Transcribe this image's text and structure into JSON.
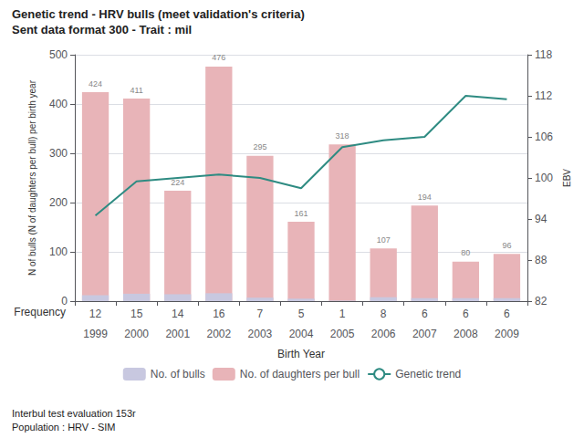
{
  "chart_data": {
    "type": "bar",
    "title": "Genetic trend - HRV bulls (meet validation's criteria)",
    "subtitle": "Sent data format 300 - Trait : mil",
    "categories": [
      1999,
      2000,
      2001,
      2002,
      2003,
      2004,
      2005,
      2006,
      2007,
      2008,
      2009
    ],
    "series": [
      {
        "name": "No. of bulls",
        "type": "bar",
        "color": "#c8c8e0",
        "values": [
          12,
          15,
          14,
          16,
          7,
          5,
          1,
          8,
          6,
          6,
          6
        ]
      },
      {
        "name": "No. of daughters per bull",
        "type": "bar",
        "color": "#e8b4b8",
        "data_labels": true,
        "values": [
          424,
          411,
          224,
          476,
          295,
          161,
          318,
          107,
          194,
          80,
          96
        ]
      },
      {
        "name": "Genetic trend",
        "type": "line",
        "color": "#2e8b82",
        "axis": "y2",
        "values": [
          94.5,
          99.5,
          100.0,
          100.5,
          100.0,
          98.5,
          104.5,
          105.5,
          106.0,
          112.0,
          111.5
        ]
      }
    ],
    "frequency": {
      "label": "Frequency",
      "values": [
        12,
        15,
        14,
        16,
        7,
        5,
        1,
        8,
        6,
        6,
        6
      ]
    },
    "xlabel": "Birth Year",
    "ylabel": "N of bulls (N of daughters per bull) per birth year",
    "y2label": "EBV",
    "ylim": [
      0,
      500
    ],
    "yticks": [
      0,
      100,
      200,
      300,
      400,
      500
    ],
    "y2lim": [
      82,
      118
    ],
    "y2ticks": [
      82,
      88,
      94,
      100,
      106,
      112,
      118
    ],
    "grid": true,
    "legend": "bottom",
    "annotations": [
      "Interbul test evaluation 153r",
      "Population : HRV - SIM"
    ]
  }
}
